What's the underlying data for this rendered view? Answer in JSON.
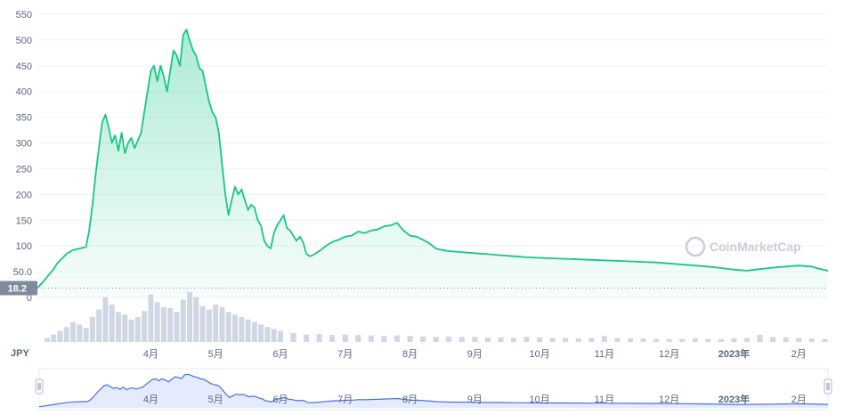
{
  "currency_label": "JPY",
  "watermark": "CoinMarketCap",
  "baseline_badge": "18.2",
  "colors": {
    "line": "#16c784",
    "volume": "#cfd6e4",
    "navigator_line": "#4a6ee0",
    "navigator_fill": "#e4ebfd",
    "badge": "#808a9d",
    "grid": "#eff2f5"
  },
  "chart_data": {
    "type": "area",
    "title": "",
    "xlabel": "",
    "ylabel": "",
    "ylim": [
      0,
      550
    ],
    "yticks": [
      0,
      50.0,
      100,
      150,
      200,
      250,
      300,
      350,
      400,
      450,
      500,
      550
    ],
    "ytick_labels": [
      "0",
      "50.0",
      "100",
      "150",
      "200",
      "250",
      "300",
      "350",
      "400",
      "450",
      "500",
      "550"
    ],
    "grid": true,
    "baseline_value": 18.2,
    "x_tick_labels": [
      "4月",
      "5月",
      "6月",
      "7月",
      "8月",
      "9月",
      "10月",
      "11月",
      "12月",
      "2023年",
      "2月"
    ],
    "x_tick_positions": [
      1.0,
      2.0,
      3.0,
      4.0,
      5.0,
      6.0,
      7.0,
      8.0,
      9.0,
      10.0,
      11.0
    ],
    "x_range": [
      -0.75,
      11.45
    ],
    "series": [
      {
        "x": [
          -0.75,
          -0.7,
          -0.65,
          -0.6,
          -0.5,
          -0.45,
          -0.4,
          -0.35,
          -0.3,
          -0.2,
          -0.1,
          0.0,
          0.05,
          0.1,
          0.15,
          0.2,
          0.25,
          0.3,
          0.35,
          0.4,
          0.45,
          0.5,
          0.55,
          0.6,
          0.65,
          0.7,
          0.75,
          0.8,
          0.85,
          0.9,
          1.0,
          1.05,
          1.1,
          1.15,
          1.2,
          1.25,
          1.3,
          1.35,
          1.4,
          1.45,
          1.5,
          1.55,
          1.6,
          1.65,
          1.7,
          1.75,
          1.8,
          1.85,
          1.9,
          1.95,
          2.0,
          2.05,
          2.1,
          2.15,
          2.2,
          2.25,
          2.3,
          2.35,
          2.4,
          2.45,
          2.5,
          2.55,
          2.6,
          2.65,
          2.7,
          2.75,
          2.8,
          2.85,
          2.9,
          2.95,
          3.0,
          3.05,
          3.1,
          3.15,
          3.2,
          3.25,
          3.3,
          3.35,
          3.4,
          3.45,
          3.5,
          3.6,
          3.7,
          3.8,
          3.9,
          4.0,
          4.1,
          4.2,
          4.3,
          4.4,
          4.5,
          4.6,
          4.7,
          4.8,
          4.9,
          5.0,
          5.1,
          5.2,
          5.3,
          5.4,
          5.5,
          5.6,
          5.8,
          6.0,
          6.2,
          6.4,
          6.6,
          6.8,
          7.0,
          7.2,
          7.4,
          7.6,
          7.8,
          8.0,
          8.2,
          8.4,
          8.6,
          8.8,
          9.0,
          9.2,
          9.4,
          9.6,
          9.8,
          10.0,
          10.2,
          10.4,
          10.6,
          10.8,
          11.0,
          11.2,
          11.3,
          11.45
        ],
        "y": [
          18.2,
          25,
          32,
          40,
          55,
          65,
          72,
          78,
          85,
          92,
          95,
          98,
          130,
          180,
          240,
          290,
          340,
          355,
          330,
          300,
          315,
          285,
          320,
          280,
          300,
          310,
          290,
          305,
          320,
          360,
          440,
          450,
          420,
          450,
          430,
          400,
          440,
          480,
          470,
          450,
          510,
          520,
          500,
          480,
          470,
          445,
          440,
          410,
          380,
          360,
          350,
          320,
          260,
          200,
          160,
          190,
          215,
          200,
          210,
          190,
          170,
          180,
          175,
          150,
          140,
          110,
          100,
          95,
          125,
          140,
          150,
          160,
          135,
          130,
          120,
          110,
          118,
          108,
          85,
          80,
          82,
          90,
          100,
          108,
          112,
          118,
          120,
          128,
          125,
          130,
          132,
          138,
          140,
          145,
          130,
          120,
          118,
          112,
          105,
          95,
          92,
          90,
          88,
          86,
          84,
          82,
          80,
          78,
          77,
          76,
          75,
          74,
          73,
          72,
          71,
          70,
          69,
          68,
          66,
          64,
          62,
          60,
          57,
          54,
          52,
          55,
          58,
          60,
          62,
          60,
          56,
          52
        ]
      }
    ],
    "volume": [
      {
        "x": -0.6,
        "h": 0.08
      },
      {
        "x": -0.5,
        "h": 0.15
      },
      {
        "x": -0.4,
        "h": 0.22
      },
      {
        "x": -0.3,
        "h": 0.3
      },
      {
        "x": -0.2,
        "h": 0.4
      },
      {
        "x": -0.1,
        "h": 0.35
      },
      {
        "x": 0.0,
        "h": 0.28
      },
      {
        "x": 0.1,
        "h": 0.5
      },
      {
        "x": 0.2,
        "h": 0.65
      },
      {
        "x": 0.3,
        "h": 0.9
      },
      {
        "x": 0.4,
        "h": 0.75
      },
      {
        "x": 0.5,
        "h": 0.6
      },
      {
        "x": 0.6,
        "h": 0.55
      },
      {
        "x": 0.7,
        "h": 0.45
      },
      {
        "x": 0.8,
        "h": 0.5
      },
      {
        "x": 0.9,
        "h": 0.62
      },
      {
        "x": 1.0,
        "h": 0.95
      },
      {
        "x": 1.1,
        "h": 0.8
      },
      {
        "x": 1.2,
        "h": 0.7
      },
      {
        "x": 1.3,
        "h": 0.68
      },
      {
        "x": 1.4,
        "h": 0.6
      },
      {
        "x": 1.5,
        "h": 0.85
      },
      {
        "x": 1.6,
        "h": 1.0
      },
      {
        "x": 1.7,
        "h": 0.9
      },
      {
        "x": 1.8,
        "h": 0.72
      },
      {
        "x": 1.9,
        "h": 0.65
      },
      {
        "x": 2.0,
        "h": 0.75
      },
      {
        "x": 2.1,
        "h": 0.7
      },
      {
        "x": 2.2,
        "h": 0.6
      },
      {
        "x": 2.3,
        "h": 0.55
      },
      {
        "x": 2.4,
        "h": 0.5
      },
      {
        "x": 2.5,
        "h": 0.45
      },
      {
        "x": 2.6,
        "h": 0.4
      },
      {
        "x": 2.7,
        "h": 0.35
      },
      {
        "x": 2.8,
        "h": 0.3
      },
      {
        "x": 2.9,
        "h": 0.26
      },
      {
        "x": 3.0,
        "h": 0.22
      },
      {
        "x": 3.2,
        "h": 0.18
      },
      {
        "x": 3.4,
        "h": 0.15
      },
      {
        "x": 3.6,
        "h": 0.16
      },
      {
        "x": 3.8,
        "h": 0.14
      },
      {
        "x": 4.0,
        "h": 0.15
      },
      {
        "x": 4.2,
        "h": 0.14
      },
      {
        "x": 4.4,
        "h": 0.13
      },
      {
        "x": 4.6,
        "h": 0.12
      },
      {
        "x": 4.8,
        "h": 0.13
      },
      {
        "x": 5.0,
        "h": 0.12
      },
      {
        "x": 5.2,
        "h": 0.11
      },
      {
        "x": 5.4,
        "h": 0.1
      },
      {
        "x": 5.6,
        "h": 0.11
      },
      {
        "x": 5.8,
        "h": 0.1
      },
      {
        "x": 6.0,
        "h": 0.1
      },
      {
        "x": 6.2,
        "h": 0.09
      },
      {
        "x": 6.4,
        "h": 0.09
      },
      {
        "x": 6.6,
        "h": 0.08
      },
      {
        "x": 6.8,
        "h": 0.1
      },
      {
        "x": 7.0,
        "h": 0.09
      },
      {
        "x": 7.2,
        "h": 0.08
      },
      {
        "x": 7.4,
        "h": 0.08
      },
      {
        "x": 7.6,
        "h": 0.07
      },
      {
        "x": 7.8,
        "h": 0.08
      },
      {
        "x": 8.0,
        "h": 0.12
      },
      {
        "x": 8.2,
        "h": 0.08
      },
      {
        "x": 8.4,
        "h": 0.07
      },
      {
        "x": 8.6,
        "h": 0.07
      },
      {
        "x": 8.8,
        "h": 0.06
      },
      {
        "x": 9.0,
        "h": 0.06
      },
      {
        "x": 9.2,
        "h": 0.06
      },
      {
        "x": 9.4,
        "h": 0.07
      },
      {
        "x": 9.6,
        "h": 0.06
      },
      {
        "x": 9.8,
        "h": 0.06
      },
      {
        "x": 10.0,
        "h": 0.07
      },
      {
        "x": 10.2,
        "h": 0.08
      },
      {
        "x": 10.4,
        "h": 0.14
      },
      {
        "x": 10.6,
        "h": 0.1
      },
      {
        "x": 10.8,
        "h": 0.09
      },
      {
        "x": 11.0,
        "h": 0.08
      },
      {
        "x": 11.2,
        "h": 0.07
      },
      {
        "x": 11.4,
        "h": 0.06
      }
    ]
  }
}
